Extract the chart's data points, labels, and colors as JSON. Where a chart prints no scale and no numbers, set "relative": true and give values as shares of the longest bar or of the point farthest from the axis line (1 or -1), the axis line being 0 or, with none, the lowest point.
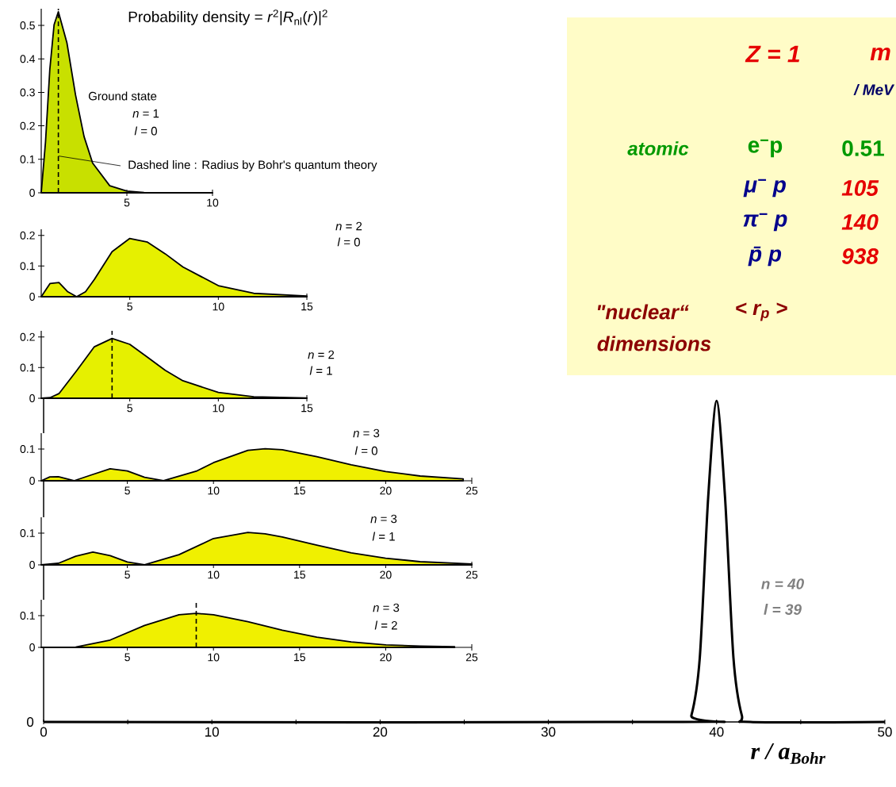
{
  "chart_data": [
    {
      "type": "area",
      "title": "Probability density =  *r*$^{2}$|*R*$_{nl}$(*r*)|$^{2}$",
      "color": "#c8e000",
      "x": [
        0,
        0.25,
        0.5,
        0.75,
        1,
        1.5,
        2,
        2.5,
        3,
        4,
        5,
        6,
        8,
        10
      ],
      "values": [
        0,
        0.152,
        0.368,
        0.502,
        0.541,
        0.448,
        0.293,
        0.168,
        0.089,
        0.021,
        0.005,
        0.001,
        0,
        0
      ],
      "xlim": [
        0,
        10
      ],
      "xticks": [
        5,
        10
      ],
      "ylim": [
        0,
        0.55
      ],
      "yticks": [
        0,
        0.1,
        0.2,
        0.3,
        0.4,
        0.5
      ],
      "ref_lines": [
        {
          "axis": "x",
          "value": 1,
          "line_style": "dashed"
        }
      ],
      "annotations": [
        "Ground state",
        "*n* = 1",
        "*l* = 0",
        {
          "text": "Dashed line : Radius by Bohr's quantum theory",
          "x": 1,
          "y": 0.11
        }
      ]
    },
    {
      "type": "area",
      "color": "#e6f000",
      "x": [
        0,
        0.5,
        1,
        1.5,
        2,
        2.5,
        3,
        4,
        5,
        6,
        7,
        8,
        10,
        12,
        15
      ],
      "values": [
        0,
        0.043,
        0.046,
        0.016,
        0,
        0.016,
        0.056,
        0.147,
        0.19,
        0.178,
        0.14,
        0.097,
        0.036,
        0.011,
        0.002
      ],
      "xlim": [
        0,
        15
      ],
      "xticks": [
        5,
        10,
        15
      ],
      "ylim": [
        0,
        0.22
      ],
      "yticks": [
        0,
        0.1,
        0.2
      ],
      "annotations": [
        "*n* = 2",
        "*l* = 0"
      ]
    },
    {
      "type": "area",
      "color": "#e6f000",
      "x": [
        0,
        0.5,
        1,
        2,
        3,
        4,
        5,
        6,
        7,
        8,
        10,
        12,
        15
      ],
      "values": [
        0,
        0.002,
        0.015,
        0.09,
        0.168,
        0.195,
        0.176,
        0.134,
        0.091,
        0.057,
        0.019,
        0.005,
        0.001
      ],
      "xlim": [
        0,
        15
      ],
      "xticks": [
        5,
        10,
        15
      ],
      "ylim": [
        0,
        0.22
      ],
      "yticks": [
        0,
        0.1,
        0.2
      ],
      "ref_lines": [
        {
          "axis": "x",
          "value": 4,
          "line_style": "dashed"
        }
      ],
      "annotations": [
        "*n* = 2",
        "*l* = 1"
      ]
    },
    {
      "type": "area",
      "color": "#f0f000",
      "x": [
        0,
        0.5,
        1,
        1.9,
        3,
        4,
        5,
        6,
        7.1,
        9,
        10,
        12,
        13,
        14,
        16,
        18,
        20,
        22,
        24.5
      ],
      "values": [
        0,
        0.012,
        0.013,
        0,
        0.02,
        0.038,
        0.031,
        0.011,
        0,
        0.03,
        0.057,
        0.096,
        0.101,
        0.098,
        0.076,
        0.05,
        0.029,
        0.015,
        0.006
      ],
      "xlim": [
        0,
        25
      ],
      "xticks": [
        5,
        10,
        15,
        20,
        25
      ],
      "ylim": [
        0,
        0.15
      ],
      "yticks": [
        0,
        0.1
      ],
      "annotations": [
        "*n* = 3",
        "*l* = 0"
      ]
    },
    {
      "type": "area",
      "color": "#f0f000",
      "x": [
        0,
        1,
        2,
        3,
        4,
        5,
        6,
        8,
        10,
        12,
        13,
        14,
        16,
        18,
        20,
        22,
        25
      ],
      "values": [
        0,
        0.005,
        0.027,
        0.04,
        0.029,
        0.009,
        0,
        0.032,
        0.083,
        0.102,
        0.098,
        0.088,
        0.062,
        0.038,
        0.021,
        0.01,
        0.003
      ],
      "xlim": [
        0,
        25
      ],
      "xticks": [
        5,
        10,
        15,
        20,
        25
      ],
      "ylim": [
        0,
        0.15
      ],
      "yticks": [
        0,
        0.1
      ],
      "annotations": [
        "*n* = 3",
        "*l* = 1"
      ]
    },
    {
      "type": "area",
      "color": "#f0f000",
      "x": [
        0,
        2,
        4,
        6,
        8,
        9,
        10,
        12,
        14,
        16,
        18,
        20,
        22,
        24
      ],
      "values": [
        0,
        0.001,
        0.023,
        0.069,
        0.103,
        0.107,
        0.103,
        0.081,
        0.054,
        0.032,
        0.017,
        0.008,
        0.004,
        0.002
      ],
      "xlim": [
        0,
        25
      ],
      "xticks": [
        5,
        10,
        15,
        20,
        25
      ],
      "ylim": [
        0,
        0.15
      ],
      "yticks": [
        0,
        0.1
      ],
      "ref_lines": [
        {
          "axis": "x",
          "value": 9,
          "line_style": "dashed"
        }
      ],
      "annotations": [
        "*n* = 3",
        "*l* = 2"
      ]
    },
    {
      "type": "line",
      "relative": true,
      "color": "#000000",
      "x": [
        0,
        38,
        38.5,
        39,
        39.5,
        40,
        40.5,
        41,
        41.5,
        42,
        50
      ],
      "values": [
        0,
        0,
        0.02,
        0.2,
        0.7,
        1,
        0.7,
        0.2,
        0.02,
        0,
        0
      ],
      "xlim": [
        0,
        50
      ],
      "xticks": [
        0,
        {
          "value": 5,
          "label": null
        },
        10,
        {
          "value": 15,
          "label": null
        },
        20,
        {
          "value": 25,
          "label": null
        },
        30,
        {
          "value": 35,
          "label": null
        },
        40,
        {
          "value": 45,
          "label": null
        },
        50
      ],
      "xlabel": "r / a$_{Bohr}$",
      "annotations": [
        "0",
        "*n* = 40",
        "*l* = 39"
      ]
    },
    {
      "type": "other",
      "annotations": [
        "Z = 1",
        "m",
        "/ MeV",
        "atomic",
        "e$^{−}$p",
        "0.51",
        "μ$^{−}$ p",
        "105",
        "π$^{−}$ p",
        "140",
        "p̄  p",
        "938",
        "\"nuclear“",
        "< r$_{p}$ >",
        "dimensions"
      ]
    }
  ]
}
